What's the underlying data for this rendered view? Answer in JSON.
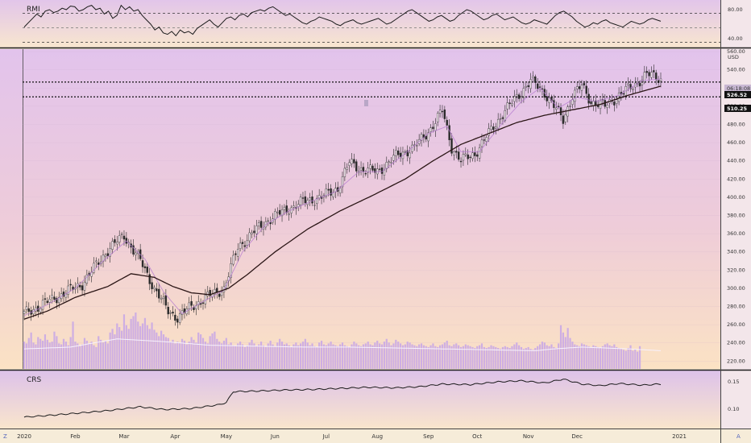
{
  "ui": {
    "rmi_label": "RMI",
    "crs_label": "CRS",
    "currency": "USD",
    "corner_left": "Z",
    "corner_right": "A",
    "countdown": "06:18:08",
    "last_price_tag": "526.52",
    "level_tag": "510.25",
    "colors": {
      "candle": "#2a2a2a",
      "volume": "#c9a8e6",
      "ma_long": "#2a1515",
      "ma_short": "#b57bd0",
      "level_line": "#111111",
      "rmi_line": "#1b1b1b",
      "crs_line": "#1b1b1b"
    }
  },
  "chart_data": [
    {
      "type": "line",
      "name": "RMI",
      "ylim": [
        30,
        90
      ],
      "y_ticks": [
        80.0,
        40.0
      ],
      "tick_labels": [
        "80.00",
        "40.00"
      ],
      "reference_lines": [
        75,
        55,
        35
      ],
      "y": [
        56,
        62,
        68,
        74,
        70,
        78,
        80,
        76,
        78,
        82,
        80,
        85,
        84,
        78,
        80,
        84,
        86,
        80,
        82,
        74,
        78,
        68,
        72,
        86,
        80,
        84,
        78,
        80,
        72,
        66,
        60,
        52,
        56,
        48,
        46,
        50,
        44,
        52,
        48,
        50,
        46,
        54,
        58,
        62,
        66,
        60,
        56,
        62,
        68,
        70,
        66,
        72,
        74,
        70,
        76,
        78,
        80,
        78,
        82,
        84,
        80,
        76,
        72,
        74,
        70,
        66,
        62,
        60,
        64,
        66,
        70,
        68,
        66,
        64,
        60,
        58,
        62,
        64,
        66,
        62,
        60,
        62,
        64,
        66,
        68,
        64,
        60,
        62,
        66,
        70,
        74,
        78,
        80,
        76,
        72,
        68,
        64,
        66,
        70,
        72,
        68,
        64,
        66,
        72,
        76,
        80,
        78,
        74,
        70,
        66,
        68,
        72,
        74,
        70,
        66,
        68,
        70,
        66,
        62,
        60,
        62,
        66,
        64,
        62,
        60,
        66,
        72,
        76,
        78,
        74,
        70,
        64,
        60,
        56,
        58,
        62,
        60,
        64,
        66,
        62,
        60,
        58,
        56,
        60,
        64,
        62,
        60,
        62,
        66,
        68,
        66,
        64
      ]
    },
    {
      "type": "candlestick",
      "name": "Price",
      "x_ticks": [
        "2020",
        "Feb",
        "Mar",
        "Apr",
        "May",
        "Jun",
        "Jul",
        "Aug",
        "Sep",
        "Oct",
        "Nov",
        "Dec",
        "2021"
      ],
      "x_tick_index": [
        0,
        22,
        43,
        65,
        87,
        108,
        130,
        152,
        174,
        195,
        217,
        238,
        282
      ],
      "ylim": [
        215,
        560
      ],
      "y_ticks": [
        560,
        540,
        520,
        500,
        480,
        460,
        440,
        420,
        400,
        380,
        360,
        340,
        320,
        300,
        280,
        260,
        240,
        220
      ],
      "y_tick_labels": [
        "560.00",
        "540.00",
        "520.00",
        "500.00",
        "480.00",
        "460.00",
        "440.00",
        "420.00",
        "400.00",
        "380.00",
        "360.00",
        "340.00",
        "320.00",
        "300.00",
        "280.00",
        "260.00",
        "240.00",
        "220.00"
      ],
      "levels": [
        526.52,
        510.25
      ],
      "close_anchors": [
        [
          0,
          272
        ],
        [
          10,
          285
        ],
        [
          25,
          305
        ],
        [
          36,
          342
        ],
        [
          43,
          358
        ],
        [
          50,
          330
        ],
        [
          56,
          300
        ],
        [
          62,
          275
        ],
        [
          66,
          268
        ],
        [
          72,
          280
        ],
        [
          80,
          292
        ],
        [
          86,
          300
        ],
        [
          92,
          345
        ],
        [
          98,
          360
        ],
        [
          105,
          375
        ],
        [
          112,
          385
        ],
        [
          120,
          395
        ],
        [
          128,
          400
        ],
        [
          135,
          410
        ],
        [
          140,
          438
        ],
        [
          146,
          430
        ],
        [
          152,
          428
        ],
        [
          160,
          445
        ],
        [
          168,
          455
        ],
        [
          174,
          472
        ],
        [
          180,
          495
        ],
        [
          184,
          455
        ],
        [
          188,
          440
        ],
        [
          194,
          448
        ],
        [
          200,
          470
        ],
        [
          206,
          492
        ],
        [
          212,
          510
        ],
        [
          218,
          528
        ],
        [
          224,
          515
        ],
        [
          228,
          500
        ],
        [
          232,
          485
        ],
        [
          236,
          512
        ],
        [
          240,
          522
        ],
        [
          244,
          505
        ],
        [
          250,
          500
        ],
        [
          256,
          512
        ],
        [
          262,
          522
        ],
        [
          268,
          535
        ],
        [
          274,
          530
        ]
      ],
      "ma_long_anchors": [
        [
          0,
          266
        ],
        [
          10,
          275
        ],
        [
          22,
          290
        ],
        [
          36,
          302
        ],
        [
          46,
          316
        ],
        [
          56,
          312
        ],
        [
          64,
          302
        ],
        [
          72,
          295
        ],
        [
          80,
          293
        ],
        [
          88,
          300
        ],
        [
          96,
          315
        ],
        [
          108,
          340
        ],
        [
          122,
          365
        ],
        [
          136,
          385
        ],
        [
          150,
          402
        ],
        [
          164,
          420
        ],
        [
          176,
          440
        ],
        [
          188,
          458
        ],
        [
          200,
          470
        ],
        [
          212,
          482
        ],
        [
          224,
          490
        ],
        [
          236,
          496
        ],
        [
          248,
          502
        ],
        [
          260,
          512
        ],
        [
          274,
          522
        ]
      ],
      "ma_short_anchors": [
        [
          0,
          270
        ],
        [
          10,
          282
        ],
        [
          22,
          300
        ],
        [
          34,
          330
        ],
        [
          44,
          352
        ],
        [
          52,
          332
        ],
        [
          60,
          296
        ],
        [
          68,
          272
        ],
        [
          76,
          284
        ],
        [
          86,
          298
        ],
        [
          94,
          340
        ],
        [
          104,
          370
        ],
        [
          114,
          385
        ],
        [
          124,
          396
        ],
        [
          134,
          406
        ],
        [
          144,
          428
        ],
        [
          154,
          428
        ],
        [
          164,
          448
        ],
        [
          174,
          470
        ],
        [
          182,
          478
        ],
        [
          188,
          450
        ],
        [
          196,
          450
        ],
        [
          206,
          482
        ],
        [
          214,
          505
        ],
        [
          222,
          520
        ],
        [
          230,
          498
        ],
        [
          238,
          510
        ],
        [
          246,
          505
        ],
        [
          256,
          512
        ],
        [
          266,
          528
        ],
        [
          274,
          530
        ]
      ]
    },
    {
      "type": "bar",
      "name": "Volume",
      "values": [
        30,
        28,
        34,
        40,
        29,
        27,
        35,
        33,
        31,
        38,
        32,
        29,
        30,
        41,
        36,
        28,
        27,
        33,
        30,
        26,
        35,
        52,
        30,
        28,
        25,
        27,
        34,
        31,
        28,
        30,
        26,
        24,
        36,
        32,
        29,
        31,
        28,
        40,
        44,
        38,
        50,
        46,
        42,
        60,
        48,
        44,
        55,
        58,
        62,
        52,
        47,
        50,
        56,
        48,
        44,
        51,
        43,
        40,
        36,
        42,
        38,
        35,
        34,
        30,
        32,
        28,
        30,
        29,
        33,
        31,
        27,
        30,
        35,
        32,
        29,
        40,
        38,
        34,
        30,
        28,
        36,
        39,
        41,
        33,
        30,
        28,
        31,
        34,
        27,
        29,
        26,
        25,
        28,
        30,
        27,
        24,
        26,
        29,
        32,
        28,
        25,
        27,
        30,
        26,
        24,
        28,
        31,
        27,
        25,
        29,
        33,
        30,
        27,
        28,
        26,
        24,
        27,
        29,
        26,
        28,
        30,
        33,
        29,
        26,
        28,
        25,
        24,
        29,
        31,
        27,
        26,
        28,
        30,
        27,
        26,
        25,
        27,
        29,
        26,
        25,
        24,
        27,
        30,
        28,
        26,
        25,
        27,
        28,
        30,
        27,
        26,
        29,
        31,
        28,
        27,
        30,
        33,
        29,
        26,
        28,
        32,
        30,
        28,
        26,
        27,
        30,
        29,
        27,
        26,
        25,
        27,
        28,
        26,
        25,
        24,
        26,
        28,
        25,
        24,
        26,
        27,
        29,
        31,
        26,
        25,
        27,
        28,
        26,
        24,
        25,
        27,
        26,
        25,
        24,
        23,
        25,
        26,
        28,
        24,
        23,
        24,
        26,
        25,
        24,
        23,
        22,
        24,
        25,
        24,
        23,
        25,
        27,
        29,
        26,
        24,
        22,
        23,
        24,
        22,
        21,
        23,
        25,
        27,
        30,
        29,
        26,
        25,
        27,
        24,
        23,
        28,
        48,
        40,
        35,
        45,
        34,
        30,
        27,
        26,
        25,
        28,
        27,
        26,
        25,
        24,
        26,
        25,
        24,
        23,
        25,
        27,
        28,
        26,
        25,
        27,
        24,
        23,
        22,
        21,
        20,
        23,
        26,
        20,
        22,
        19,
        25
      ],
      "volume_ma_anchors": [
        [
          0,
          22
        ],
        [
          20,
          24
        ],
        [
          40,
          33
        ],
        [
          60,
          30
        ],
        [
          80,
          26
        ],
        [
          100,
          25
        ],
        [
          120,
          24
        ],
        [
          140,
          24
        ],
        [
          160,
          23
        ],
        [
          180,
          22
        ],
        [
          200,
          21
        ],
        [
          220,
          20
        ],
        [
          228,
          22
        ],
        [
          240,
          24
        ],
        [
          260,
          22
        ],
        [
          274,
          20
        ]
      ]
    },
    {
      "type": "line",
      "name": "CRS",
      "ylim": [
        0.07,
        0.165
      ],
      "y_ticks": [
        0.15,
        0.1
      ],
      "tick_labels": [
        "0.15",
        "0.10"
      ],
      "anchors": [
        [
          0,
          0.085
        ],
        [
          10,
          0.088
        ],
        [
          22,
          0.092
        ],
        [
          36,
          0.097
        ],
        [
          50,
          0.104
        ],
        [
          60,
          0.099
        ],
        [
          72,
          0.101
        ],
        [
          84,
          0.108
        ],
        [
          87,
          0.112
        ],
        [
          90,
          0.132
        ],
        [
          100,
          0.133
        ],
        [
          112,
          0.135
        ],
        [
          124,
          0.136
        ],
        [
          136,
          0.138
        ],
        [
          148,
          0.14
        ],
        [
          160,
          0.139
        ],
        [
          170,
          0.141
        ],
        [
          180,
          0.146
        ],
        [
          192,
          0.145
        ],
        [
          204,
          0.15
        ],
        [
          214,
          0.152
        ],
        [
          224,
          0.148
        ],
        [
          232,
          0.155
        ],
        [
          240,
          0.146
        ],
        [
          248,
          0.143
        ],
        [
          256,
          0.147
        ],
        [
          266,
          0.144
        ],
        [
          274,
          0.146
        ]
      ]
    }
  ]
}
